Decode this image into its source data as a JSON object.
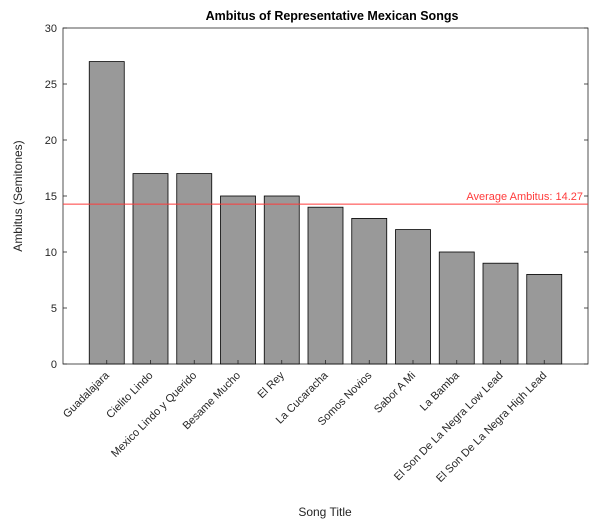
{
  "chart_data": {
    "type": "bar",
    "title": "Ambitus of Representative Mexican Songs",
    "xlabel": "Song Title",
    "ylabel": "Ambitus (Semitones)",
    "ylim": [
      0,
      30
    ],
    "yticks": [
      0,
      5,
      10,
      15,
      20,
      25,
      30
    ],
    "categories": [
      "Guadalajara",
      "Cielito Lindo",
      "Mexico Lindo y Querido",
      "Besame Mucho",
      "El Rey",
      "La Cucaracha",
      "Somos Novios",
      "Sabor A Mi",
      "La Bamba",
      "El Son De La Negra Low Lead",
      "El Son De La Negra High Lead"
    ],
    "values": [
      27,
      17,
      17,
      15,
      15,
      14,
      13,
      12,
      10,
      9,
      8
    ],
    "bar_color": "#999999",
    "reference_line": {
      "value": 14.27,
      "label": "Average Ambitus: 14.27",
      "color": "#ff3b3b"
    },
    "grid": false,
    "legend": "none"
  }
}
